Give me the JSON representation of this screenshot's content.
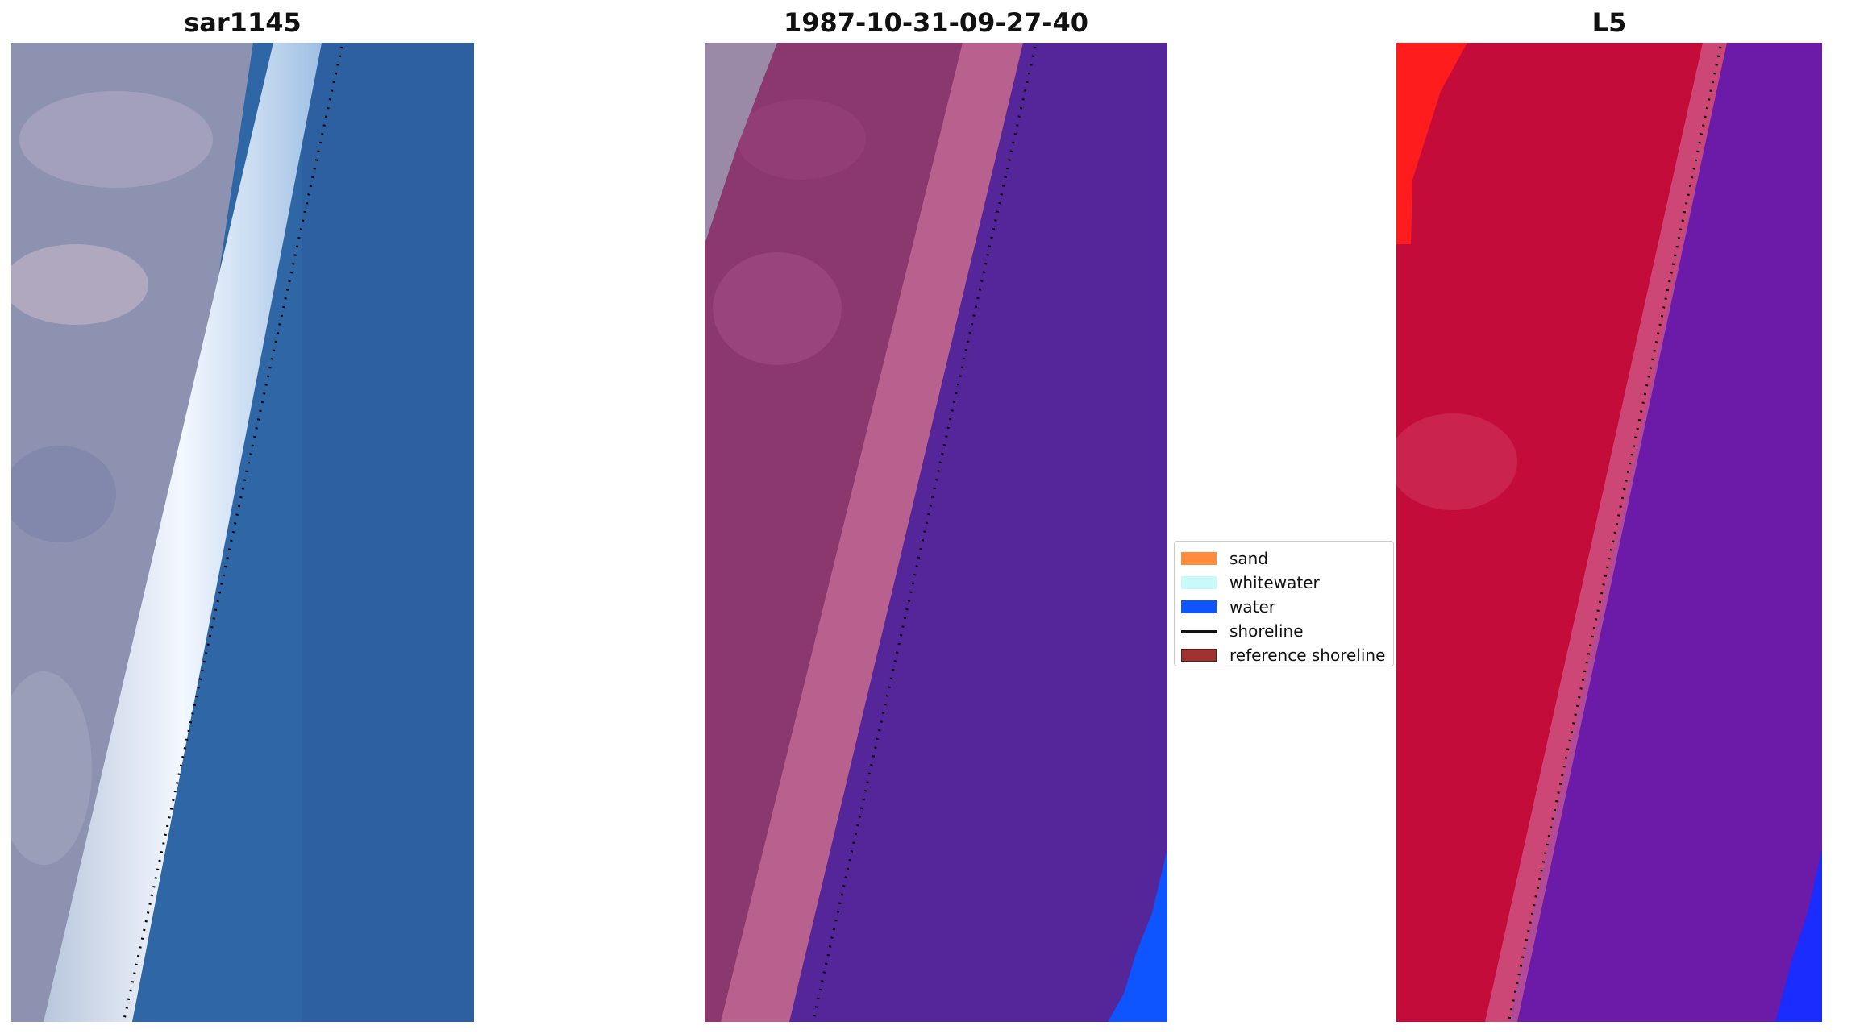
{
  "titles": {
    "left": "sar1145",
    "middle": "1987-10-31-09-27-40",
    "right": "L5"
  },
  "legend": {
    "items": [
      {
        "label": "sand",
        "color": "#ff8c3c",
        "kind": "patch"
      },
      {
        "label": "whitewater",
        "color": "#c8fafa",
        "kind": "patch"
      },
      {
        "label": "water",
        "color": "#0f55ff",
        "kind": "patch"
      },
      {
        "label": "shoreline",
        "color": "#111111",
        "kind": "line"
      },
      {
        "label": "reference shoreline",
        "color": "#a03232",
        "kind": "patch"
      }
    ]
  },
  "colors": {
    "rgb_land": "#8c92b0",
    "rgb_whitewater": "#eef3fb",
    "rgb_water": "#2e68a6",
    "class_land": "#8a386e",
    "class_beach": "#b8608e",
    "class_water": "#55259a",
    "class_water_corner": "#0f55ff",
    "l5_land": "#c40c3a",
    "l5_red": "#ff1c1c",
    "l5_water": "#6c1aa8",
    "l5_blue_corner": "#1a2cff",
    "shoreline_dots": "#000000"
  }
}
